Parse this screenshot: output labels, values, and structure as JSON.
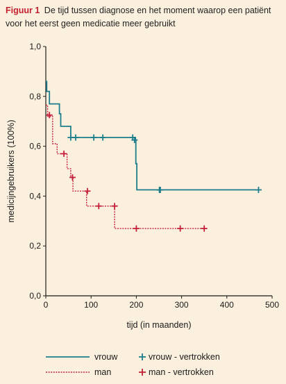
{
  "caption": {
    "figure_label": "Figuur 1",
    "text": "De tijd tussen diagnose en het moment waarop een patiënt voor het eerst geen medicatie meer gebruikt"
  },
  "chart_data": {
    "type": "line",
    "title": "",
    "xlabel": "tijd (in maanden)",
    "ylabel": "medicijngebruikers (100%)",
    "xlim": [
      0,
      500
    ],
    "ylim": [
      0,
      1.0
    ],
    "x_ticks": [
      0,
      100,
      200,
      300,
      400,
      500
    ],
    "x_tick_labels": [
      "0",
      "100",
      "200",
      "300",
      "400",
      "500"
    ],
    "y_ticks": [
      0,
      0.2,
      0.4,
      0.6,
      0.8,
      1.0
    ],
    "y_tick_labels": [
      "0,0",
      "0,2",
      "0,4",
      "0,6",
      "0,8",
      "1,0"
    ],
    "grid": false,
    "legend_position": "bottom",
    "colors": {
      "vrouw": "#1e7d8c",
      "man": "#c4203a"
    },
    "series": [
      {
        "name": "vrouw",
        "style": "solid",
        "steps": [
          [
            0,
            0.86
          ],
          [
            2,
            0.82
          ],
          [
            8,
            0.77
          ],
          [
            30,
            0.73
          ],
          [
            33,
            0.68
          ],
          [
            55,
            0.635
          ],
          [
            198,
            0.625
          ],
          [
            199,
            0.53
          ],
          [
            201,
            0.425
          ],
          [
            470,
            0.425
          ]
        ],
        "censored": [
          [
            55,
            0.635
          ],
          [
            66,
            0.635
          ],
          [
            106,
            0.635
          ],
          [
            126,
            0.635
          ],
          [
            192,
            0.635
          ],
          [
            196,
            0.625
          ],
          [
            251,
            0.425
          ],
          [
            253,
            0.425
          ],
          [
            470,
            0.425
          ]
        ]
      },
      {
        "name": "man",
        "style": "dotted",
        "steps": [
          [
            0,
            0.765
          ],
          [
            4,
            0.72
          ],
          [
            15,
            0.61
          ],
          [
            25,
            0.57
          ],
          [
            47,
            0.51
          ],
          [
            55,
            0.475
          ],
          [
            60,
            0.42
          ],
          [
            90,
            0.36
          ],
          [
            152,
            0.27
          ],
          [
            350,
            0.27
          ]
        ],
        "censored": [
          [
            8,
            0.725
          ],
          [
            40,
            0.57
          ],
          [
            59,
            0.475
          ],
          [
            92,
            0.42
          ],
          [
            117,
            0.36
          ],
          [
            152,
            0.36
          ],
          [
            200,
            0.27
          ],
          [
            297,
            0.27
          ],
          [
            350,
            0.27
          ]
        ]
      }
    ],
    "legend": {
      "vrouw": "vrouw",
      "man": "man",
      "vrouw_censored": "vrouw - vertrokken",
      "man_censored": "man - vertrokken"
    }
  }
}
